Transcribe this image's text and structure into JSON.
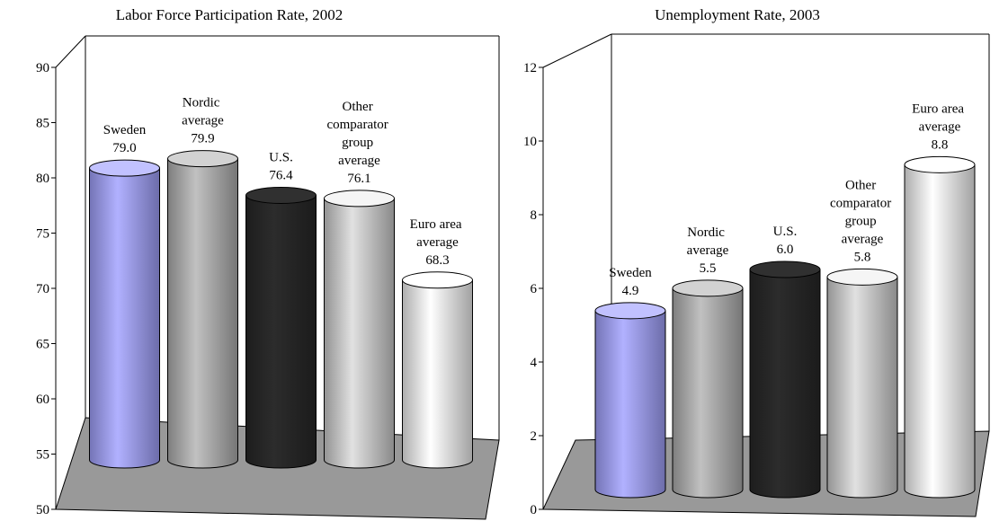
{
  "chart_data": [
    {
      "type": "bar",
      "title": "Labor Force Participation Rate, 2002",
      "categories": [
        "Sweden",
        "Nordic average",
        "U.S.",
        "Other comparator group average",
        "Euro area average"
      ],
      "values": [
        79.0,
        79.9,
        76.4,
        76.1,
        68.3
      ],
      "value_labels": [
        "79.0",
        "79.9",
        "76.4",
        "76.1",
        "68.3"
      ],
      "colors": [
        "#9a9af2",
        "#a8a8a8",
        "#262626",
        "#c4c4c4",
        "#e6e6e6"
      ],
      "ylim": [
        50,
        90
      ],
      "yticks": [
        50,
        55,
        60,
        65,
        70,
        75,
        80,
        85,
        90
      ],
      "grid": false
    },
    {
      "type": "bar",
      "title": "Unemployment Rate, 2003",
      "categories": [
        "Sweden",
        "Nordic average",
        "U.S.",
        "Other comparator group average",
        "Euro area average"
      ],
      "values": [
        4.9,
        5.5,
        6.0,
        5.8,
        8.8
      ],
      "value_labels": [
        "4.9",
        "5.5",
        "6.0",
        "5.8",
        "8.8"
      ],
      "colors": [
        "#9a9af2",
        "#a8a8a8",
        "#262626",
        "#c4c4c4",
        "#e6e6e6"
      ],
      "ylim": [
        0,
        12
      ],
      "yticks": [
        0,
        2,
        4,
        6,
        8,
        10,
        12
      ],
      "grid": false
    }
  ]
}
